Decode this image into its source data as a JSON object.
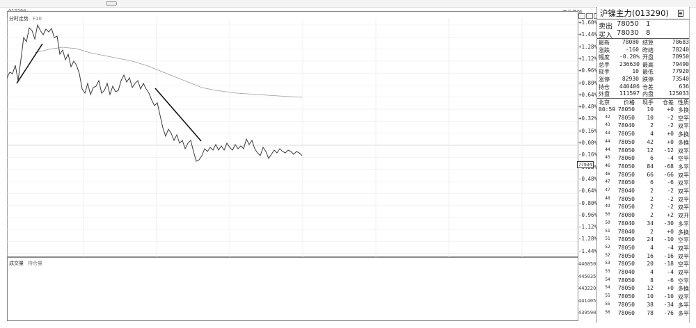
{
  "window": {
    "code_label": "013290"
  },
  "toolbar": {
    "overlay_button": "商品叠加"
  },
  "intraday": {
    "title": "分时走势",
    "subtitle": "F10",
    "right_scale": [
      "+1.60%",
      "+1.44%",
      "+1.28%",
      "+1.12%",
      "+0.96%",
      "+0.80%",
      "+0.64%",
      "+0.48%",
      "+0.32%",
      "+0.16%",
      "+0.00%",
      "-0.16%",
      "-0.32%",
      "-0.48%",
      "-0.64%",
      "-0.80%",
      "-0.96%",
      "-1.12%",
      "-1.28%",
      "-1.44%"
    ],
    "cursor_price": "77934"
  },
  "volume": {
    "title": "成交量",
    "subtitle": "持仓量",
    "right_scale": [
      "446850",
      "445035",
      "443220",
      "441405",
      "439590"
    ]
  },
  "sidebar": {
    "title": "沪镍主力(013290)",
    "orderbook": [
      {
        "label": "卖出",
        "price": "78050",
        "qty": "1"
      },
      {
        "label": "买入",
        "price": "78030",
        "qty": "8"
      }
    ],
    "stats": [
      {
        "l1": "最新",
        "v1": "78080",
        "l2": "结算",
        "v2": "78683"
      },
      {
        "l1": "涨跌",
        "v1": "-160",
        "l2": "昨结",
        "v2": "78240"
      },
      {
        "l1": "幅度",
        "v1": "-0.20%",
        "l2": "开盘",
        "v2": "78950"
      },
      {
        "l1": "总手",
        "v1": "236630",
        "l2": "最高",
        "v2": "79490"
      },
      {
        "l1": "现手",
        "v1": "10",
        "l2": "最低",
        "v2": "77920"
      },
      {
        "l1": "涨停",
        "v1": "82930",
        "l2": "跌停",
        "v2": "73540"
      },
      {
        "l1": "持仓",
        "v1": "440406",
        "l2": "仓差",
        "v2": "636"
      },
      {
        "l1": "外盘",
        "v1": "111597",
        "l2": "内盘",
        "v2": "125033"
      }
    ],
    "trades_header": [
      "北京",
      "价格",
      "现手",
      "仓差",
      "性质"
    ],
    "trades": [
      [
        "00:59",
        "78050",
        "10",
        "+0",
        "多换"
      ],
      [
        "42",
        "78050",
        "10",
        "-2",
        "空平"
      ],
      [
        "43",
        "78040",
        "2",
        "-2",
        "双平"
      ],
      [
        "43",
        "78050",
        "4",
        "+0",
        "多换"
      ],
      [
        "44",
        "78050",
        "42",
        "+0",
        "多换"
      ],
      [
        "44",
        "78050",
        "12",
        "-12",
        "双平"
      ],
      [
        "45",
        "78060",
        "6",
        "-4",
        "空平"
      ],
      [
        "46",
        "78050",
        "84",
        "-68",
        "多平"
      ],
      [
        "46",
        "78050",
        "66",
        "-66",
        "双平"
      ],
      [
        "47",
        "78050",
        "6",
        "-6",
        "双平"
      ],
      [
        "47",
        "78040",
        "2",
        "-2",
        "双平"
      ],
      [
        "48",
        "78050",
        "2",
        "-2",
        "双平"
      ],
      [
        "49",
        "78050",
        "2",
        "-2",
        "双平"
      ],
      [
        "50",
        "78080",
        "2",
        "+2",
        "双开"
      ],
      [
        "50",
        "78040",
        "34",
        "-30",
        "多平"
      ],
      [
        "51",
        "78040",
        "2",
        "+0",
        "多换"
      ],
      [
        "51",
        "78050",
        "24",
        "-10",
        "空平"
      ],
      [
        "52",
        "78050",
        "4",
        "-4",
        "双平"
      ],
      [
        "52",
        "78050",
        "16",
        "-16",
        "双平"
      ],
      [
        "53",
        "78050",
        "20",
        "-18",
        "空平"
      ],
      [
        "53",
        "78040",
        "4",
        "-4",
        "双平"
      ],
      [
        "54",
        "78050",
        "8",
        "-6",
        "空平"
      ],
      [
        "54",
        "78050",
        "12",
        "+0",
        "多换"
      ],
      [
        "55",
        "78050",
        "10",
        "-10",
        "双平"
      ],
      [
        "55",
        "78050",
        "38",
        "-34",
        "多平"
      ],
      [
        "56",
        "78060",
        "78",
        "-76",
        "多平"
      ]
    ]
  },
  "colors": {
    "price_line": "#3a3a3a",
    "avg_line": "#9b9b9b",
    "grid": "#e3e3e3",
    "annotation": "#111111"
  }
}
